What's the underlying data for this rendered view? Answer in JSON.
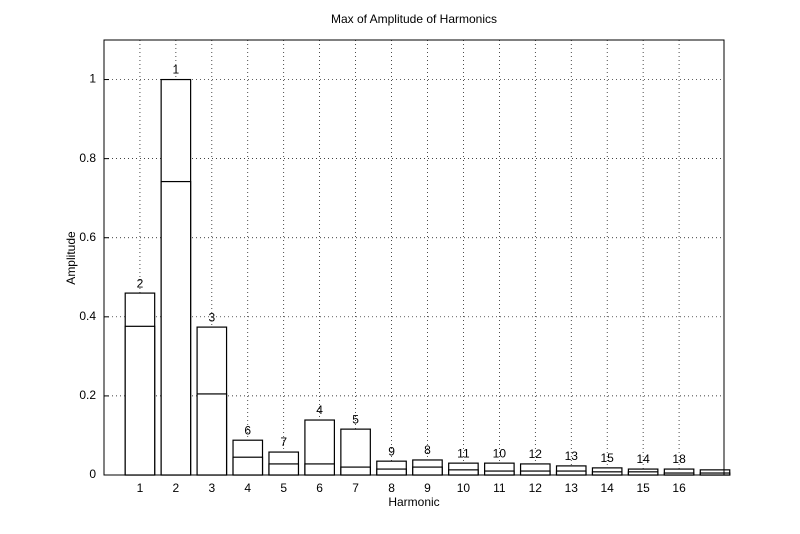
{
  "chart_data": {
    "type": "bar",
    "title": "Max of Amplitude of Harmonics",
    "xlabel": "Harmonic",
    "ylabel": "Amplitude",
    "x": [
      1,
      2,
      3,
      4,
      5,
      6,
      7,
      8,
      9,
      10,
      11,
      12,
      13,
      14,
      15,
      16,
      17
    ],
    "series": [
      {
        "color": "#ffffff",
        "values": [
          0.46,
          1.0,
          0.374,
          0.088,
          0.058,
          0.139,
          0.116,
          0.035,
          0.038,
          0.03,
          0.03,
          0.028,
          0.023,
          0.018,
          0.015,
          0.015,
          0.013
        ]
      },
      {
        "color": "#ffffff",
        "values": [
          0.376,
          0.742,
          0.205,
          0.045,
          0.028,
          0.028,
          0.02,
          0.015,
          0.02,
          0.013,
          0.01,
          0.01,
          0.01,
          0.008,
          0.008,
          0.005,
          0.005
        ]
      }
    ],
    "annotations": [
      "2",
      "1",
      "3",
      "6",
      "7",
      "4",
      "5",
      "9",
      "8",
      "11",
      "10",
      "12",
      "13",
      "15",
      "14",
      "18",
      null
    ],
    "xlim": [
      0,
      17.25
    ],
    "xticks": [
      1,
      2,
      3,
      4,
      5,
      6,
      7,
      8,
      9,
      10,
      11,
      12,
      13,
      14,
      15,
      16
    ],
    "ylim": [
      0,
      1.1
    ],
    "yticks": [
      0,
      0.2,
      0.4,
      0.6,
      0.8,
      1
    ],
    "grid": true
  }
}
